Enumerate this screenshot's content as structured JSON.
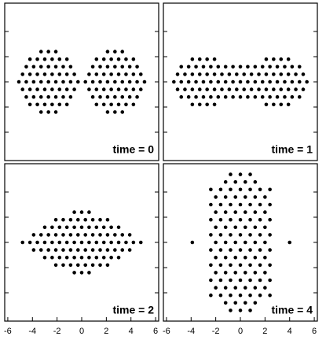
{
  "chart_data": [
    {
      "type": "scatter",
      "annotation": "time = 0",
      "xlim": [
        -6.25,
        6.25
      ],
      "ylim": [
        -6.25,
        6.25
      ],
      "yticks": [
        -4,
        -2,
        0,
        2,
        4
      ],
      "color": "#000000",
      "x": [
        -3.3,
        -2.7,
        -2.1,
        -4.2,
        -3.6,
        -3,
        -2.4,
        -1.8,
        -1.2,
        -4.5,
        -3.9,
        -3.3,
        -2.7,
        -2.1,
        -1.5,
        -0.9,
        -4.8,
        -4.2,
        -3.6,
        -3,
        -2.4,
        -1.8,
        -1.2,
        -0.6,
        -5.1,
        -4.5,
        -3.9,
        -3.3,
        -2.7,
        -2.1,
        -1.5,
        -0.9,
        -0.3,
        -4.8,
        -4.2,
        -3.6,
        -3,
        -2.4,
        -1.8,
        -1.2,
        -0.6,
        -4.5,
        -3.9,
        -3.3,
        -2.7,
        -2.1,
        -1.5,
        -0.9,
        -4.2,
        -3.6,
        -3,
        -2.4,
        -1.8,
        -1.2,
        -3.3,
        -2.7,
        -2.1,
        2.1,
        2.7,
        3.3,
        1.2,
        1.8,
        2.4,
        3,
        3.6,
        4.2,
        0.9,
        1.5,
        2.1,
        2.7,
        3.3,
        3.9,
        4.5,
        0.6,
        1.2,
        1.8,
        2.4,
        3,
        3.6,
        4.2,
        4.8,
        0.3,
        0.9,
        1.5,
        2.1,
        2.7,
        3.3,
        3.9,
        4.5,
        5.1,
        0.6,
        1.2,
        1.8,
        2.4,
        3,
        3.6,
        4.2,
        4.8,
        0.9,
        1.5,
        2.1,
        2.7,
        3.3,
        3.9,
        4.5,
        1.2,
        1.8,
        2.4,
        3,
        3.6,
        4.2,
        2.1,
        2.7,
        3.3
      ],
      "values": [
        2.4,
        2.4,
        2.4,
        1.8,
        1.8,
        1.8,
        1.8,
        1.8,
        1.8,
        1.2,
        1.2,
        1.2,
        1.2,
        1.2,
        1.2,
        1.2,
        0.6,
        0.6,
        0.6,
        0.6,
        0.6,
        0.6,
        0.6,
        0.6,
        0,
        0,
        0,
        0,
        0,
        0,
        0,
        0,
        0,
        -0.6,
        -0.6,
        -0.6,
        -0.6,
        -0.6,
        -0.6,
        -0.6,
        -0.6,
        -1.2,
        -1.2,
        -1.2,
        -1.2,
        -1.2,
        -1.2,
        -1.2,
        -1.8,
        -1.8,
        -1.8,
        -1.8,
        -1.8,
        -1.8,
        -2.4,
        -2.4,
        -2.4,
        2.4,
        2.4,
        2.4,
        1.8,
        1.8,
        1.8,
        1.8,
        1.8,
        1.8,
        1.2,
        1.2,
        1.2,
        1.2,
        1.2,
        1.2,
        1.2,
        0.6,
        0.6,
        0.6,
        0.6,
        0.6,
        0.6,
        0.6,
        0.6,
        0,
        0,
        0,
        0,
        0,
        0,
        0,
        0,
        0,
        -0.6,
        -0.6,
        -0.6,
        -0.6,
        -0.6,
        -0.6,
        -0.6,
        -0.6,
        -1.2,
        -1.2,
        -1.2,
        -1.2,
        -1.2,
        -1.2,
        -1.2,
        -1.8,
        -1.8,
        -1.8,
        -1.8,
        -1.8,
        -1.8,
        -2.4,
        -2.4,
        -2.4
      ]
    },
    {
      "type": "scatter",
      "annotation": "time = 1",
      "xlim": [
        -6.25,
        6.25
      ],
      "ylim": [
        -6.25,
        6.25
      ],
      "yticks": [
        -4,
        -2,
        0,
        2,
        4
      ],
      "color": "#000000",
      "x": [
        -3.9,
        -3.3,
        -2.7,
        -2.1,
        2.1,
        2.7,
        3.3,
        3.9,
        -4.8,
        -4.2,
        -3.6,
        -3,
        -2.4,
        -1.8,
        -1.2,
        -0.6,
        0,
        0.6,
        1.2,
        1.8,
        2.4,
        3,
        3.6,
        4.2,
        4.8,
        -5.1,
        -4.5,
        -3.9,
        -3.3,
        -2.7,
        -2.1,
        -1.5,
        -0.9,
        -0.3,
        0.3,
        0.9,
        1.5,
        2.1,
        2.7,
        3.3,
        3.9,
        4.5,
        5.1,
        -5.4,
        -4.8,
        -4.2,
        -3.6,
        -3,
        -2.4,
        -1.8,
        -1.2,
        -0.6,
        0,
        0.6,
        1.2,
        1.8,
        2.4,
        3,
        3.6,
        4.2,
        4.8,
        5.4,
        -5.1,
        -4.5,
        -3.9,
        -3.3,
        -2.7,
        -2.1,
        -1.5,
        -0.9,
        -0.3,
        0.3,
        0.9,
        1.5,
        2.1,
        2.7,
        3.3,
        3.9,
        4.5,
        5.1,
        -4.8,
        -4.2,
        -3.6,
        -3,
        -2.4,
        -1.8,
        -1.2,
        -0.6,
        0,
        0.6,
        1.2,
        1.8,
        2.4,
        3,
        3.6,
        4.2,
        4.8,
        -3.9,
        -3.3,
        -2.7,
        -2.1,
        2.1,
        2.7,
        3.3,
        3.9
      ],
      "values": [
        1.8,
        1.8,
        1.8,
        1.8,
        1.8,
        1.8,
        1.8,
        1.8,
        1.2,
        1.2,
        1.2,
        1.2,
        1.2,
        1.2,
        1.2,
        1.2,
        1.2,
        1.2,
        1.2,
        1.2,
        1.2,
        1.2,
        1.2,
        1.2,
        1.2,
        0.6,
        0.6,
        0.6,
        0.6,
        0.6,
        0.6,
        0.6,
        0.6,
        0.6,
        0.6,
        0.6,
        0.6,
        0.6,
        0.6,
        0.6,
        0.6,
        0.6,
        0.6,
        0,
        0,
        0,
        0,
        0,
        0,
        0,
        0,
        0,
        0,
        0,
        0,
        0,
        0,
        0,
        0,
        0,
        0,
        0,
        -0.6,
        -0.6,
        -0.6,
        -0.6,
        -0.6,
        -0.6,
        -0.6,
        -0.6,
        -0.6,
        -0.6,
        -0.6,
        -0.6,
        -0.6,
        -0.6,
        -0.6,
        -0.6,
        -0.6,
        -0.6,
        -1.2,
        -1.2,
        -1.2,
        -1.2,
        -1.2,
        -1.2,
        -1.2,
        -1.2,
        -1.2,
        -1.2,
        -1.2,
        -1.2,
        -1.2,
        -1.2,
        -1.2,
        -1.2,
        -1.2,
        -1.8,
        -1.8,
        -1.8,
        -1.8,
        -1.8,
        -1.8,
        -1.8,
        -1.8
      ]
    },
    {
      "type": "scatter",
      "annotation": "time = 2",
      "xlim": [
        -6.25,
        6.25
      ],
      "ylim": [
        -6.25,
        6.25
      ],
      "yticks": [
        -4,
        -2,
        0,
        2,
        4
      ],
      "xticks": [
        -6,
        -4,
        -2,
        0,
        2,
        4,
        6
      ],
      "color": "#000000",
      "x": [
        -0.6,
        0,
        0.6,
        -2.1,
        -1.5,
        -0.9,
        -0.3,
        0.3,
        0.9,
        1.5,
        2.1,
        -3,
        -2.4,
        -1.8,
        -1.2,
        -0.6,
        0,
        0.6,
        1.2,
        1.8,
        2.4,
        3,
        -3.9,
        -3.3,
        -2.7,
        -2.1,
        -1.5,
        -0.9,
        -0.3,
        0.3,
        0.9,
        1.5,
        2.1,
        2.7,
        3.3,
        3.9,
        -4.8,
        -4.2,
        -3.6,
        -3,
        -2.4,
        -1.8,
        -1.2,
        -0.6,
        0,
        0.6,
        1.2,
        1.8,
        2.4,
        3,
        3.6,
        4.2,
        4.8,
        -3.9,
        -3.3,
        -2.7,
        -2.1,
        -1.5,
        -0.9,
        -0.3,
        0.3,
        0.9,
        1.5,
        2.1,
        2.7,
        3.3,
        3.9,
        -3,
        -2.4,
        -1.8,
        -1.2,
        -0.6,
        0,
        0.6,
        1.2,
        1.8,
        2.4,
        3,
        -2.1,
        -1.5,
        -0.9,
        -0.3,
        0.3,
        0.9,
        1.5,
        2.1,
        -0.6,
        0,
        0.6
      ],
      "values": [
        2.4,
        2.4,
        2.4,
        1.8,
        1.8,
        1.8,
        1.8,
        1.8,
        1.8,
        1.8,
        1.8,
        1.2,
        1.2,
        1.2,
        1.2,
        1.2,
        1.2,
        1.2,
        1.2,
        1.2,
        1.2,
        1.2,
        0.6,
        0.6,
        0.6,
        0.6,
        0.6,
        0.6,
        0.6,
        0.6,
        0.6,
        0.6,
        0.6,
        0.6,
        0.6,
        0.6,
        0,
        0,
        0,
        0,
        0,
        0,
        0,
        0,
        0,
        0,
        0,
        0,
        0,
        0,
        0,
        0,
        0,
        -0.6,
        -0.6,
        -0.6,
        -0.6,
        -0.6,
        -0.6,
        -0.6,
        -0.6,
        -0.6,
        -0.6,
        -0.6,
        -0.6,
        -0.6,
        -0.6,
        -1.2,
        -1.2,
        -1.2,
        -1.2,
        -1.2,
        -1.2,
        -1.2,
        -1.2,
        -1.2,
        -1.2,
        -1.2,
        -1.8,
        -1.8,
        -1.8,
        -1.8,
        -1.8,
        -1.8,
        -1.8,
        -1.8,
        -2.4,
        -2.4,
        -2.4
      ]
    },
    {
      "type": "scatter",
      "annotation": "time = 4",
      "xlim": [
        -6.25,
        6.25
      ],
      "ylim": [
        -6.25,
        6.25
      ],
      "yticks": [
        -4,
        -2,
        0,
        2,
        4
      ],
      "xticks": [
        -6,
        -4,
        -2,
        0,
        2,
        4,
        6
      ],
      "color": "#000000",
      "x": [
        -0.8,
        0,
        0.8,
        -1.2,
        -0.4,
        0.4,
        1.2,
        -2.4,
        -1.6,
        -0.8,
        0,
        0.8,
        1.6,
        2.4,
        -2,
        -1.2,
        -0.4,
        0.4,
        1.2,
        2,
        -2.4,
        -1.6,
        -0.8,
        0,
        0.8,
        1.6,
        2.4,
        -2,
        -1.2,
        -0.4,
        0.4,
        1.2,
        2,
        -2.4,
        -1.6,
        -0.8,
        0,
        0.8,
        1.6,
        2.4,
        -2,
        -1.2,
        -0.4,
        0.4,
        1.2,
        2,
        -2.4,
        -1.6,
        -0.8,
        0,
        0.8,
        1.6,
        2.4,
        -2,
        -1.2,
        -0.4,
        0.4,
        1.2,
        2,
        -2.4,
        -1.6,
        -0.8,
        0,
        0.8,
        1.6,
        2.4,
        -2,
        -1.2,
        -0.4,
        0.4,
        1.2,
        2,
        -2.4,
        -1.6,
        -0.8,
        0,
        0.8,
        1.6,
        2.4,
        -2,
        -1.2,
        -0.4,
        0.4,
        1.2,
        2,
        -2.4,
        -1.6,
        -0.8,
        0,
        0.8,
        1.6,
        2.4,
        -2,
        -1.2,
        -0.4,
        0.4,
        1.2,
        2,
        -2.4,
        -1.6,
        -0.8,
        0,
        0.8,
        1.6,
        2.4,
        -1.2,
        -0.4,
        0.4,
        1.2,
        -0.8,
        0,
        0.8,
        -3.9,
        4
      ],
      "values": [
        5.4,
        5.4,
        5.4,
        4.8,
        4.8,
        4.8,
        4.8,
        4.2,
        4.2,
        4.2,
        4.2,
        4.2,
        4.2,
        4.2,
        3.6,
        3.6,
        3.6,
        3.6,
        3.6,
        3.6,
        3,
        3,
        3,
        3,
        3,
        3,
        3,
        2.4,
        2.4,
        2.4,
        2.4,
        2.4,
        2.4,
        1.8,
        1.8,
        1.8,
        1.8,
        1.8,
        1.8,
        1.8,
        1.2,
        1.2,
        1.2,
        1.2,
        1.2,
        1.2,
        0.6,
        0.6,
        0.6,
        0.6,
        0.6,
        0.6,
        0.6,
        0,
        0,
        0,
        0,
        0,
        0,
        -0.6,
        -0.6,
        -0.6,
        -0.6,
        -0.6,
        -0.6,
        -0.6,
        -1.2,
        -1.2,
        -1.2,
        -1.2,
        -1.2,
        -1.2,
        -1.8,
        -1.8,
        -1.8,
        -1.8,
        -1.8,
        -1.8,
        -1.8,
        -2.4,
        -2.4,
        -2.4,
        -2.4,
        -2.4,
        -2.4,
        -3,
        -3,
        -3,
        -3,
        -3,
        -3,
        -3,
        -3.6,
        -3.6,
        -3.6,
        -3.6,
        -3.6,
        -3.6,
        -4.2,
        -4.2,
        -4.2,
        -4.2,
        -4.2,
        -4.2,
        -4.2,
        -4.8,
        -4.8,
        -4.8,
        -4.8,
        -5.4,
        -5.4,
        -5.4,
        0,
        0
      ]
    }
  ]
}
